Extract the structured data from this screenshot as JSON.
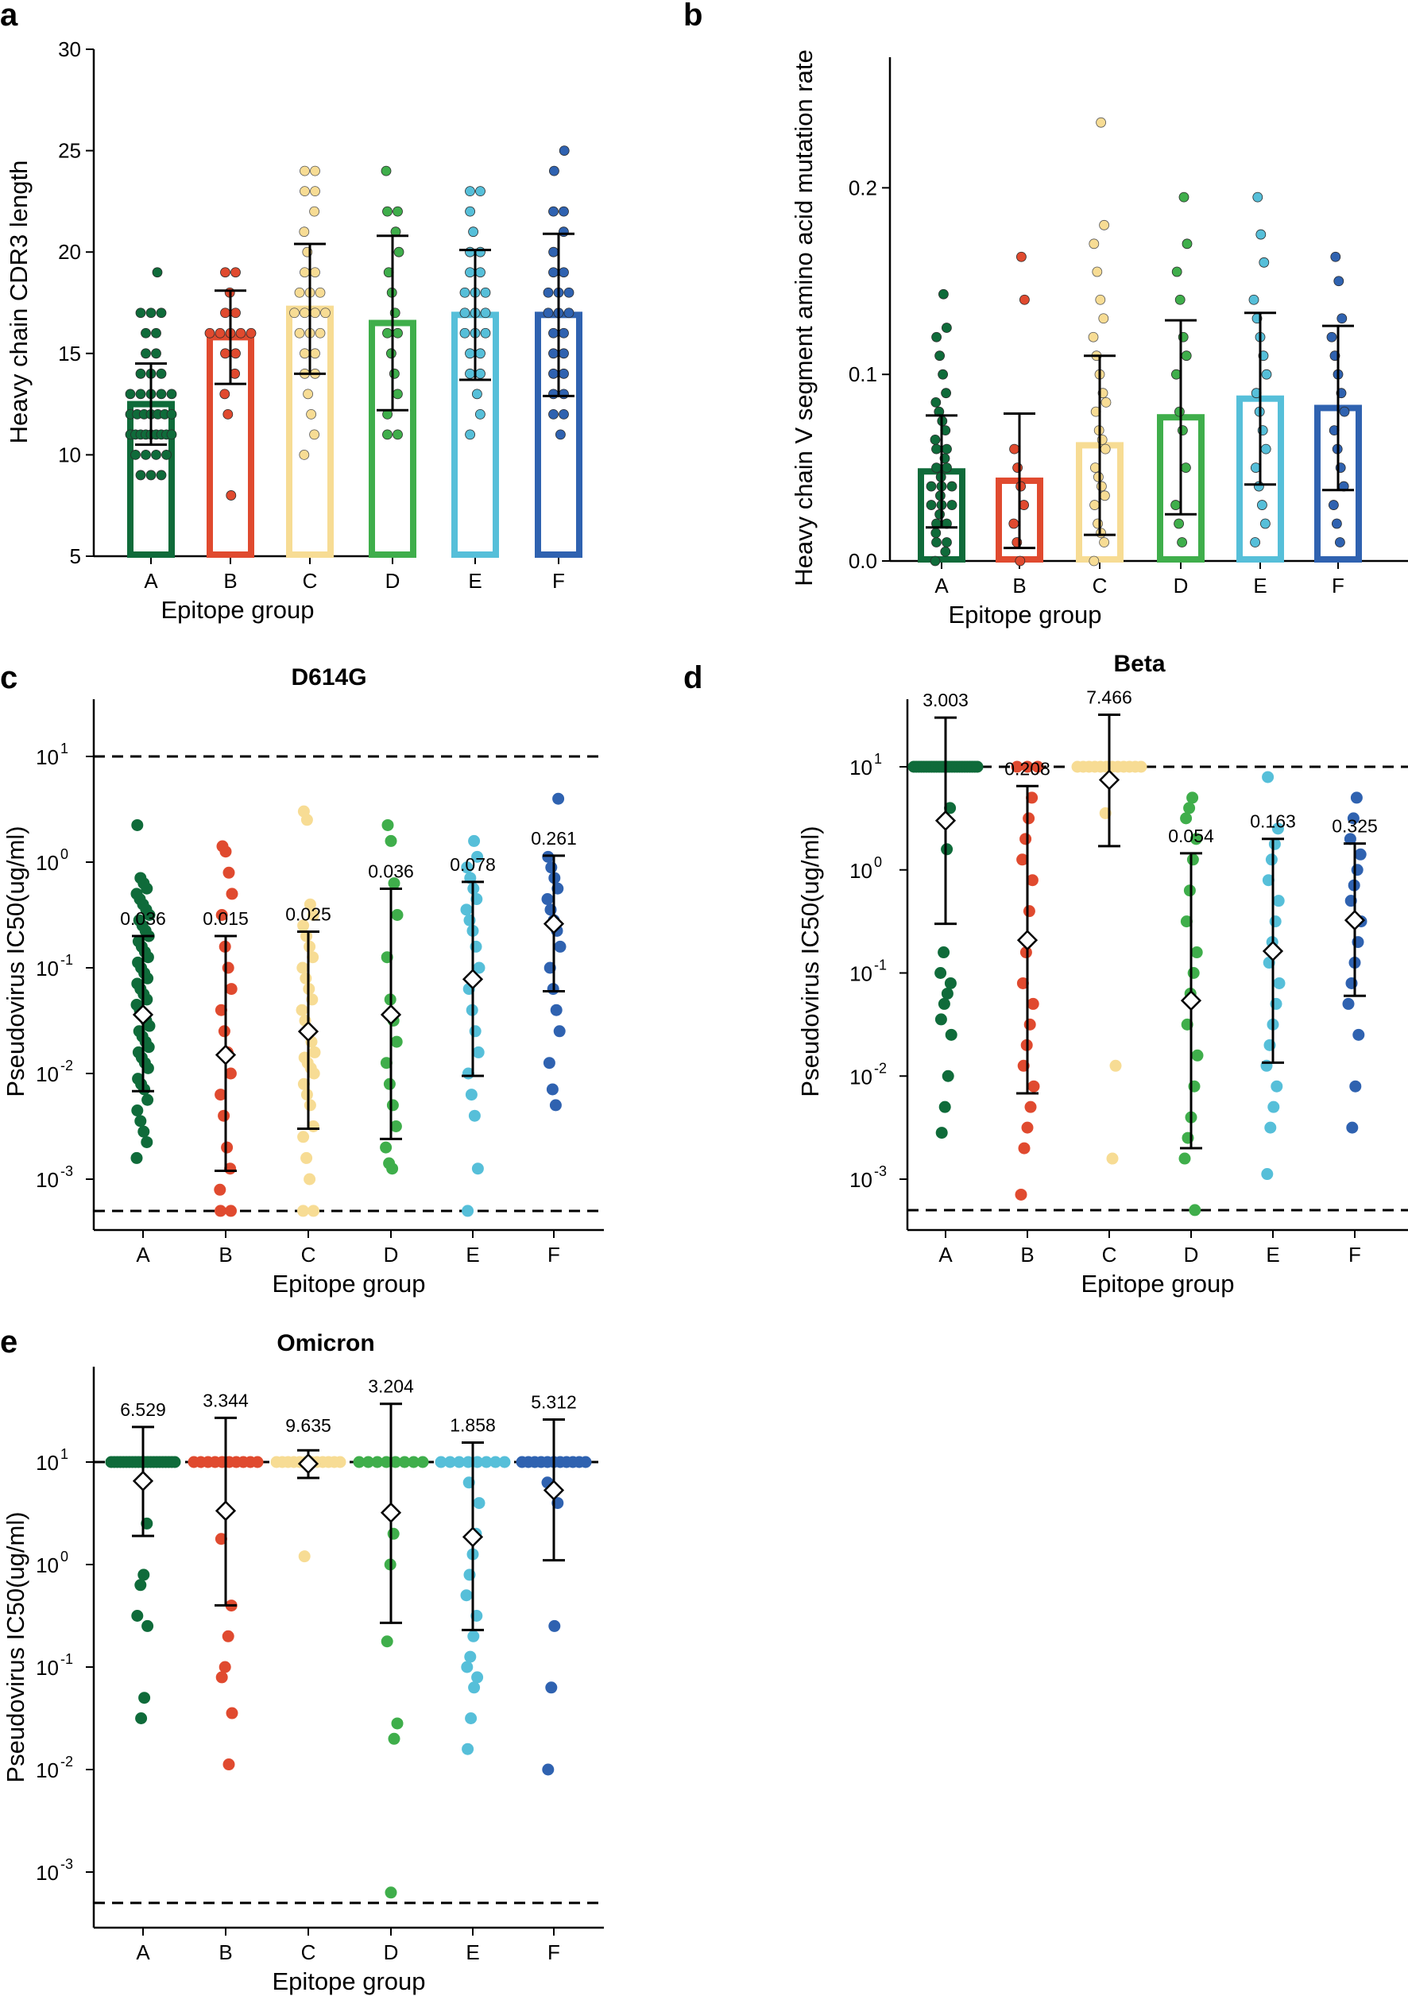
{
  "colors": {
    "A": "#0f6b3a",
    "B": "#e04a2f",
    "C": "#f7dc94",
    "D": "#3fae4b",
    "E": "#56bfd9",
    "F": "#2f62b0",
    "axis": "#000000"
  },
  "chart_data": [
    {
      "panel": "a",
      "type": "bar",
      "title": "",
      "xlabel": "Epitope group",
      "ylabel": "Heavy chain CDR3 length",
      "categories": [
        "A",
        "B",
        "C",
        "D",
        "E",
        "F"
      ],
      "values": [
        12.5,
        15.8,
        17.2,
        16.5,
        16.9,
        16.9
      ],
      "sd": [
        2.0,
        2.3,
        3.2,
        4.3,
        3.2,
        4.0
      ],
      "ylim": [
        5,
        30
      ],
      "yticks": [
        5,
        10,
        15,
        20,
        25,
        30
      ],
      "ytick_labels": [
        "5",
        "10",
        "15",
        "20",
        "25",
        "30"
      ],
      "points": {
        "A": [
          9,
          9,
          9,
          10,
          10,
          10,
          10,
          11,
          11,
          11,
          11,
          11,
          11,
          11,
          11,
          11,
          12,
          12,
          12,
          12,
          12,
          12,
          12,
          13,
          13,
          13,
          13,
          13,
          14,
          14,
          14,
          15,
          15,
          16,
          16,
          17,
          17,
          17,
          19
        ],
        "B": [
          8,
          12,
          13,
          14,
          15,
          15,
          16,
          16,
          16,
          16,
          16,
          17,
          17,
          18,
          19,
          19
        ],
        "C": [
          10,
          11,
          12,
          13,
          14,
          14,
          15,
          15,
          16,
          16,
          16,
          17,
          17,
          17,
          17,
          18,
          18,
          18,
          19,
          19,
          20,
          21,
          22,
          23,
          23,
          24,
          24
        ],
        "D": [
          11,
          11,
          12,
          13,
          14,
          15,
          16,
          16,
          17,
          18,
          19,
          20,
          21,
          22,
          22,
          24
        ],
        "E": [
          11,
          12,
          13,
          14,
          14,
          15,
          15,
          16,
          16,
          16,
          17,
          17,
          17,
          18,
          18,
          18,
          19,
          19,
          20,
          20,
          21,
          22,
          23,
          23
        ],
        "F": [
          11,
          12,
          12,
          13,
          13,
          14,
          14,
          15,
          15,
          16,
          16,
          17,
          17,
          17,
          18,
          18,
          18,
          19,
          19,
          20,
          21,
          22,
          22,
          24,
          25
        ]
      }
    },
    {
      "panel": "b",
      "type": "bar",
      "title": "",
      "xlabel": "Epitope group",
      "ylabel": "Heavy chain V segment amino acid mutation rate",
      "categories": [
        "A",
        "B",
        "C",
        "D",
        "E",
        "F"
      ],
      "values": [
        0.048,
        0.043,
        0.062,
        0.077,
        0.087,
        0.082
      ],
      "sd": [
        0.03,
        0.036,
        0.048,
        0.052,
        0.046,
        0.044
      ],
      "ylim": [
        0,
        0.27
      ],
      "yticks": [
        0,
        0.1,
        0.2
      ],
      "ytick_labels": [
        "0.0",
        "0.1",
        "0.2"
      ],
      "points": {
        "A": [
          0.0,
          0.005,
          0.01,
          0.01,
          0.015,
          0.02,
          0.02,
          0.025,
          0.03,
          0.03,
          0.03,
          0.035,
          0.04,
          0.04,
          0.04,
          0.045,
          0.05,
          0.05,
          0.055,
          0.06,
          0.06,
          0.065,
          0.07,
          0.075,
          0.08,
          0.085,
          0.09,
          0.1,
          0.11,
          0.12,
          0.125,
          0.143
        ],
        "B": [
          0.0,
          0.01,
          0.02,
          0.03,
          0.04,
          0.05,
          0.06,
          0.14,
          0.163
        ],
        "C": [
          0.0,
          0.01,
          0.015,
          0.02,
          0.03,
          0.035,
          0.04,
          0.045,
          0.05,
          0.06,
          0.065,
          0.07,
          0.08,
          0.085,
          0.09,
          0.1,
          0.11,
          0.12,
          0.13,
          0.14,
          0.155,
          0.17,
          0.18,
          0.235
        ],
        "D": [
          0.01,
          0.02,
          0.03,
          0.05,
          0.07,
          0.08,
          0.1,
          0.11,
          0.12,
          0.14,
          0.155,
          0.17,
          0.195
        ],
        "E": [
          0.01,
          0.02,
          0.03,
          0.04,
          0.05,
          0.06,
          0.07,
          0.08,
          0.09,
          0.1,
          0.11,
          0.12,
          0.13,
          0.14,
          0.16,
          0.175,
          0.195
        ],
        "F": [
          0.01,
          0.02,
          0.03,
          0.04,
          0.05,
          0.06,
          0.07,
          0.08,
          0.09,
          0.1,
          0.11,
          0.12,
          0.13,
          0.15,
          0.163
        ]
      }
    },
    {
      "panel": "c",
      "type": "scatter",
      "title": "D614G",
      "xlabel": "Epitope group",
      "ylabel": "Pseudovirus IC50(ug/ml)",
      "yscale": "log",
      "categories": [
        "A",
        "B",
        "C",
        "D",
        "E",
        "F"
      ],
      "geomean": [
        0.036,
        0.015,
        0.025,
        0.036,
        0.078,
        0.261
      ],
      "geomean_labels": [
        "0.036",
        "0.015",
        "0.025",
        "0.036",
        "0.078",
        "0.261"
      ],
      "err_low": [
        0.0068,
        0.0012,
        0.003,
        0.0024,
        0.0095,
        0.06
      ],
      "err_high": [
        0.2,
        0.2,
        0.22,
        0.56,
        0.65,
        1.15
      ],
      "log_ylim": [
        -3.5,
        1.3
      ],
      "dashed_lines": [
        10,
        0.0005
      ],
      "ytick_exponents": [
        "1",
        "0",
        "-1",
        "-2",
        "-3"
      ],
      "points_log10": {
        "A": [
          -2.8,
          -2.65,
          -2.55,
          -2.45,
          -2.35,
          -2.25,
          -2.15,
          -2.1,
          -2.05,
          -1.95,
          -1.9,
          -1.85,
          -1.8,
          -1.75,
          -1.7,
          -1.65,
          -1.6,
          -1.55,
          -1.5,
          -1.45,
          -1.4,
          -1.35,
          -1.3,
          -1.25,
          -1.2,
          -1.15,
          -1.1,
          -1.05,
          -1.0,
          -0.95,
          -0.9,
          -0.85,
          -0.8,
          -0.75,
          -0.7,
          -0.65,
          -0.6,
          -0.55,
          -0.5,
          -0.45,
          -0.4,
          -0.35,
          -0.3,
          -0.25,
          -0.2,
          -0.15,
          0.35
        ],
        "B": [
          -3.3,
          -3.3,
          -3.1,
          -2.9,
          -2.7,
          -2.4,
          -2.2,
          -2.0,
          -1.8,
          -1.6,
          -1.4,
          -1.2,
          -1.0,
          -0.8,
          -0.5,
          -0.3,
          -0.1,
          0.1,
          0.15
        ],
        "C": [
          -3.3,
          -3.3,
          -3.0,
          -2.8,
          -2.6,
          -2.5,
          -2.3,
          -2.2,
          -2.1,
          -2.0,
          -1.95,
          -1.9,
          -1.85,
          -1.8,
          -1.7,
          -1.6,
          -1.5,
          -1.4,
          -1.3,
          -1.2,
          -1.1,
          -1.0,
          -0.9,
          -0.8,
          -0.7,
          -0.6,
          -0.5,
          -0.4,
          0.4,
          0.48
        ],
        "D": [
          -2.9,
          -2.85,
          -2.7,
          -2.5,
          -2.3,
          -2.1,
          -1.9,
          -1.7,
          -1.5,
          -1.3,
          -0.9,
          -0.5,
          -0.2,
          0.2,
          0.35
        ],
        "E": [
          -3.3,
          -2.9,
          -2.4,
          -2.2,
          -2.0,
          -1.8,
          -1.6,
          -1.4,
          -1.2,
          -1.0,
          -0.8,
          -0.65,
          -0.55,
          -0.45,
          -0.35,
          -0.25,
          -0.15,
          -0.05,
          0.05,
          0.2
        ],
        "F": [
          -2.3,
          -2.15,
          -1.9,
          -1.6,
          -1.4,
          -1.2,
          -1.0,
          -0.8,
          -0.65,
          -0.55,
          -0.45,
          -0.35,
          -0.25,
          -0.15,
          -0.05,
          0.05,
          0.6
        ]
      }
    },
    {
      "panel": "d",
      "type": "scatter",
      "title": "Beta",
      "xlabel": "Epitope group",
      "ylabel": "Pseudovirus IC50(ug/ml)",
      "yscale": "log",
      "categories": [
        "A",
        "B",
        "C",
        "D",
        "E",
        "F"
      ],
      "geomean": [
        3.003,
        0.208,
        7.466,
        0.054,
        0.163,
        0.325
      ],
      "geomean_labels": [
        "3.003",
        "0.208",
        "7.466",
        "0.054",
        "0.163",
        "0.325"
      ],
      "err_low": [
        0.3,
        0.0068,
        1.7,
        0.002,
        0.0135,
        0.06
      ],
      "err_high": [
        30,
        6.5,
        32,
        1.45,
        2.0,
        1.8
      ],
      "log_ylim": [
        -3.5,
        1.5
      ],
      "dashed_lines": [
        10,
        0.0005
      ],
      "ytick_exponents": [
        "1",
        "0",
        "-1",
        "-2",
        "-3"
      ],
      "points_log10": {
        "A": [
          1,
          1,
          1,
          1,
          1,
          1,
          1,
          1,
          1,
          1,
          1,
          1,
          1,
          1,
          1,
          1,
          1,
          1,
          1,
          1,
          1,
          1,
          1,
          1,
          1,
          1,
          0.6,
          0.2,
          -0.8,
          -1.0,
          -1.1,
          -1.2,
          -1.3,
          -1.45,
          -1.6,
          -2.0,
          -2.3,
          -2.55
        ],
        "B": [
          1,
          1,
          1,
          0.7,
          0.5,
          0.3,
          0.1,
          -0.1,
          -0.4,
          -0.8,
          -1.1,
          -1.3,
          -1.5,
          -1.7,
          -1.9,
          -2.1,
          -2.3,
          -2.5,
          -2.7,
          -3.15
        ],
        "C": [
          1,
          1,
          1,
          1,
          1,
          1,
          1,
          1,
          1,
          1,
          1,
          1,
          0.55,
          -1.9,
          -2.8
        ],
        "D": [
          0.7,
          0.6,
          0.5,
          0.3,
          0.1,
          -0.2,
          -0.5,
          -0.8,
          -1.0,
          -1.2,
          -1.5,
          -1.8,
          -2.1,
          -2.4,
          -2.6,
          -2.8,
          -3.3
        ],
        "E": [
          0.9,
          0.4,
          0.25,
          0.1,
          -0.1,
          -0.3,
          -0.5,
          -0.7,
          -0.9,
          -1.1,
          -1.3,
          -1.5,
          -1.7,
          -1.9,
          -2.1,
          -2.3,
          -2.5,
          -2.95
        ],
        "F": [
          0.7,
          0.5,
          0.3,
          0.15,
          0.0,
          -0.15,
          -0.3,
          -0.5,
          -0.7,
          -0.9,
          -1.1,
          -1.3,
          -1.6,
          -2.1,
          -2.5
        ]
      }
    },
    {
      "panel": "e",
      "type": "scatter",
      "title": "Omicron",
      "xlabel": "Epitope group",
      "ylabel": "Pseudovirus IC50(ug/ml)",
      "yscale": "log",
      "categories": [
        "A",
        "B",
        "C",
        "D",
        "E",
        "F"
      ],
      "geomean": [
        6.529,
        3.344,
        9.635,
        3.204,
        1.858,
        5.312
      ],
      "geomean_labels": [
        "6.529",
        "3.344",
        "9.635",
        "3.204",
        "1.858",
        "5.312"
      ],
      "err_low": [
        1.9,
        0.4,
        7.0,
        0.27,
        0.23,
        1.1
      ],
      "err_high": [
        22,
        27,
        13,
        37,
        15.5,
        26
      ],
      "log_ylim": [
        -3.5,
        1.5
      ],
      "dashed_lines": [
        10,
        0.0005
      ],
      "ytick_exponents": [
        "1",
        "0",
        "-1",
        "-2",
        "-3"
      ],
      "points_log10": {
        "A": [
          1,
          1,
          1,
          1,
          1,
          1,
          1,
          1,
          1,
          1,
          1,
          1,
          1,
          1,
          1,
          1,
          1,
          1,
          1,
          1,
          1,
          1,
          0.4,
          -0.1,
          -0.2,
          -0.5,
          -0.6,
          -1.3,
          -1.5
        ],
        "B": [
          1,
          1,
          1,
          1,
          1,
          1,
          1,
          1,
          1,
          1,
          0.25,
          -0.4,
          -0.7,
          -1.0,
          -1.1,
          -1.45,
          -1.95
        ],
        "C": [
          1,
          1,
          1,
          1,
          1,
          1,
          1,
          1,
          1,
          1,
          1,
          1,
          0.08
        ],
        "D": [
          1,
          1,
          1,
          1,
          1,
          1,
          1,
          1,
          0.3,
          0.0,
          -0.75,
          -1.55,
          -1.7,
          -3.2
        ],
        "E": [
          1,
          1,
          1,
          1,
          1,
          1,
          1,
          1,
          0.8,
          0.6,
          0.3,
          0.1,
          -0.1,
          -0.3,
          -0.5,
          -0.7,
          -0.9,
          -1.0,
          -1.1,
          -1.2,
          -1.5,
          -1.8
        ],
        "F": [
          1,
          1,
          1,
          1,
          1,
          1,
          1,
          1,
          1,
          1,
          1,
          0.8,
          0.6,
          -0.6,
          -1.2,
          -2.0
        ]
      }
    }
  ]
}
